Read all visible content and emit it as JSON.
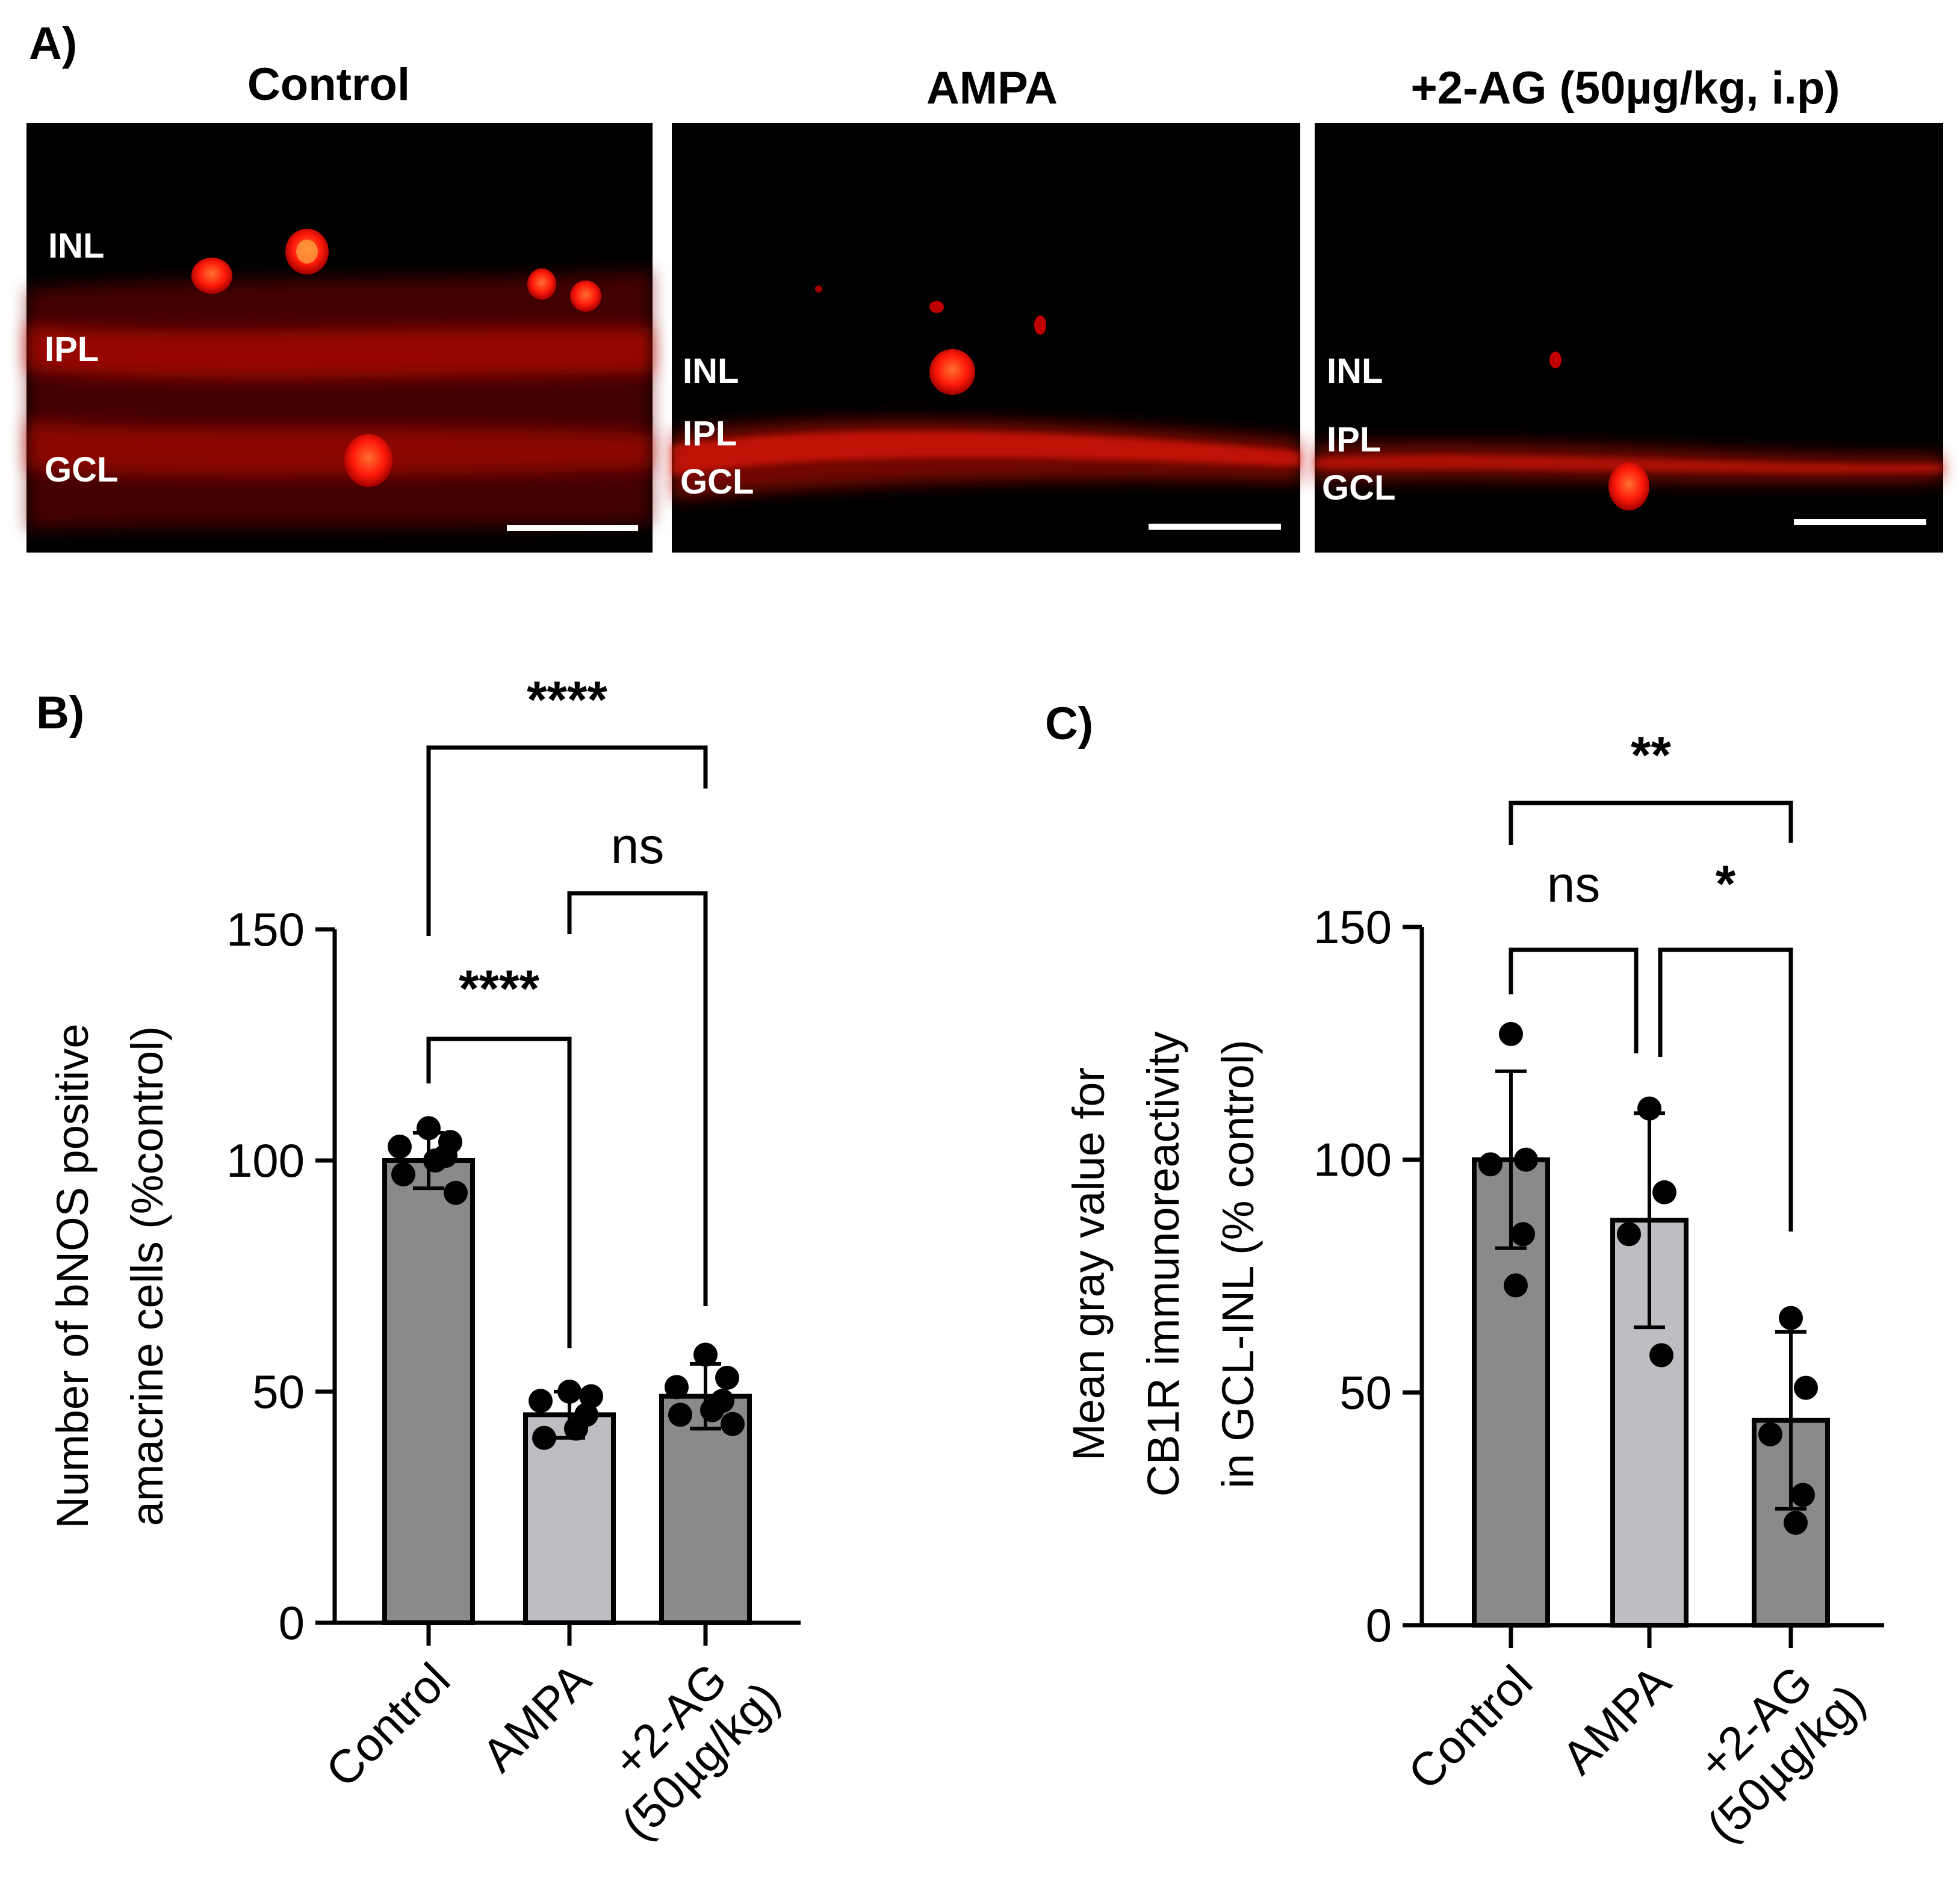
{
  "figure": {
    "panel_letters": {
      "a": "A)",
      "b": "B)",
      "c": "C)"
    }
  },
  "micrographs": [
    {
      "title": "Control",
      "layers": [
        "INL",
        "IPL",
        "GCL"
      ]
    },
    {
      "title": "AMPA",
      "layers": [
        "INL",
        "IPL",
        "GCL"
      ]
    },
    {
      "title": "+2-AG (50µg/kg, i.p)",
      "layers": [
        "INL",
        "IPL",
        "GCL"
      ]
    }
  ],
  "colors": {
    "bar_dark": "#8a8a8a",
    "bar_light": "#bdbdc2",
    "stain_red": "#ff1a0a",
    "image_bg": "#000000"
  },
  "chart_data": [
    {
      "type": "bar",
      "panel": "B)",
      "ylabel_lines": [
        "Number of bNOS positive",
        "amacrine cells (%control)"
      ],
      "categories": [
        "Control",
        "AMPA",
        "+2-AG\n(50µg/kg)"
      ],
      "values": [
        100,
        45,
        49
      ],
      "sd": [
        6,
        5,
        7
      ],
      "points": [
        [
          107,
          104,
          103,
          101,
          100,
          97,
          93
        ],
        [
          50,
          49,
          48,
          45,
          42,
          40
        ],
        [
          58,
          53,
          51,
          48,
          46,
          45,
          43
        ]
      ],
      "ylim": [
        0,
        150
      ],
      "yticks": [
        0,
        50,
        100,
        150
      ],
      "comparisons": [
        {
          "groups": [
            0,
            2
          ],
          "label": "****"
        },
        {
          "groups": [
            1,
            2
          ],
          "label": "ns"
        },
        {
          "groups": [
            0,
            1
          ],
          "label": "****"
        }
      ]
    },
    {
      "type": "bar",
      "panel": "C)",
      "ylabel_lines": [
        "Mean gray value for",
        "CB1R immunoreactivity",
        "in GCL-INL (% control)"
      ],
      "categories": [
        "Control",
        "AMPA",
        "+2-AG\n(50µg/kg)"
      ],
      "values": [
        100,
        87,
        44
      ],
      "sd": [
        19,
        23,
        19
      ],
      "points": [
        [
          127,
          100,
          99,
          84,
          73
        ],
        [
          111,
          93,
          84,
          58
        ],
        [
          66,
          51,
          41,
          28,
          22
        ]
      ],
      "ylim": [
        0,
        150
      ],
      "yticks": [
        0,
        50,
        100,
        150
      ],
      "comparisons": [
        {
          "groups": [
            0,
            2
          ],
          "label": "**"
        },
        {
          "groups": [
            0,
            1
          ],
          "label": "ns"
        },
        {
          "groups": [
            1,
            2
          ],
          "label": "*"
        }
      ]
    }
  ]
}
